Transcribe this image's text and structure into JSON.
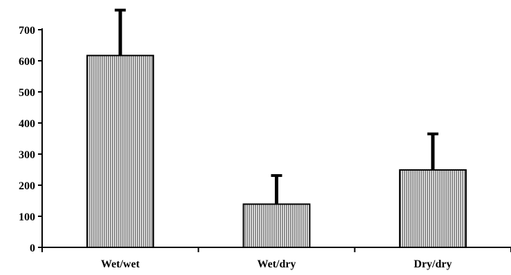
{
  "chart_data": {
    "type": "bar",
    "title": "",
    "xlabel": "",
    "ylabel": "",
    "categories": [
      "Wet/wet",
      "Wet/dry",
      "Dry/dry"
    ],
    "values": [
      617,
      139,
      249
    ],
    "error_upper": [
      763,
      231,
      365
    ],
    "ylim": [
      0,
      700
    ],
    "yticks": [
      "0",
      "100",
      "200",
      "300",
      "400",
      "500",
      "600",
      "700"
    ],
    "grid": false,
    "bar_fill": "vertical-hatch",
    "colors": {
      "bar_hatch": "#000000",
      "bar_bg": "#ffffff",
      "axis": "#000000",
      "error_bar": "#000000"
    }
  }
}
